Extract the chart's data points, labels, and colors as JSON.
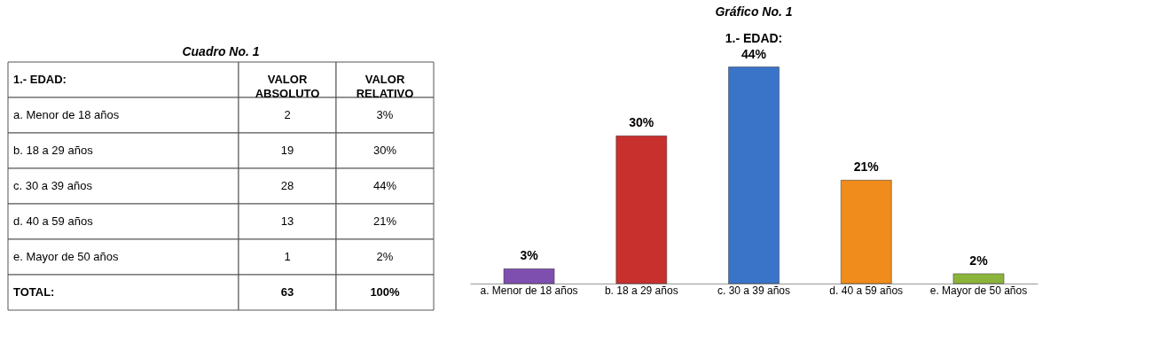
{
  "chart_data": [
    {
      "type": "other",
      "title": "Cuadro No. 1",
      "annotations": [
        "1.- EDAD:",
        "VALOR ABSOLUTO",
        "VALOR RELATIVO",
        "a. Menor de 18 años",
        "2",
        "3%",
        "b. 18 a 29 años",
        "19",
        "30%",
        "c. 30 a 39 años",
        "28",
        "44%",
        "d. 40 a 59 años",
        "13",
        "21%",
        "e. Mayor de 50 años",
        "1",
        "2%",
        "TOTAL:",
        "63",
        "100%"
      ]
    },
    {
      "type": "bar",
      "title": "Gráfico No. 1",
      "subtitle": "1.- EDAD:",
      "categories": [
        "a. Menor de 18 años",
        "b. 18 a 29 años",
        "c. 30 a 39 años",
        "d. 40 a 59 años",
        "e. Mayor de 50 años"
      ],
      "values": [
        3,
        30,
        44,
        21,
        2
      ],
      "colors": [
        "#7f4fb0",
        "#c8302e",
        "#3a74c8",
        "#f08c1c",
        "#8cb43c"
      ],
      "value_labels": [
        "3%",
        "30%",
        "44%",
        "21%",
        "2%"
      ],
      "grid": false
    }
  ]
}
